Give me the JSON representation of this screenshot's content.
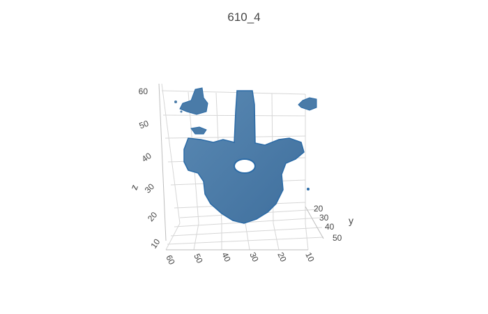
{
  "chart_data": {
    "type": "mesh3d",
    "title": "610_4",
    "axes": {
      "x": {
        "label": "",
        "ticks": [
          60,
          50,
          40,
          30,
          20,
          10
        ]
      },
      "y": {
        "label": "y",
        "ticks": [
          20,
          30,
          40,
          50
        ]
      },
      "z": {
        "label": "z",
        "ticks": [
          60,
          50,
          40,
          30,
          20,
          10
        ]
      }
    },
    "mesh_color": "#4a7ba8",
    "mesh_edge_color": "#1f5f9e",
    "background": "#ffffff"
  }
}
